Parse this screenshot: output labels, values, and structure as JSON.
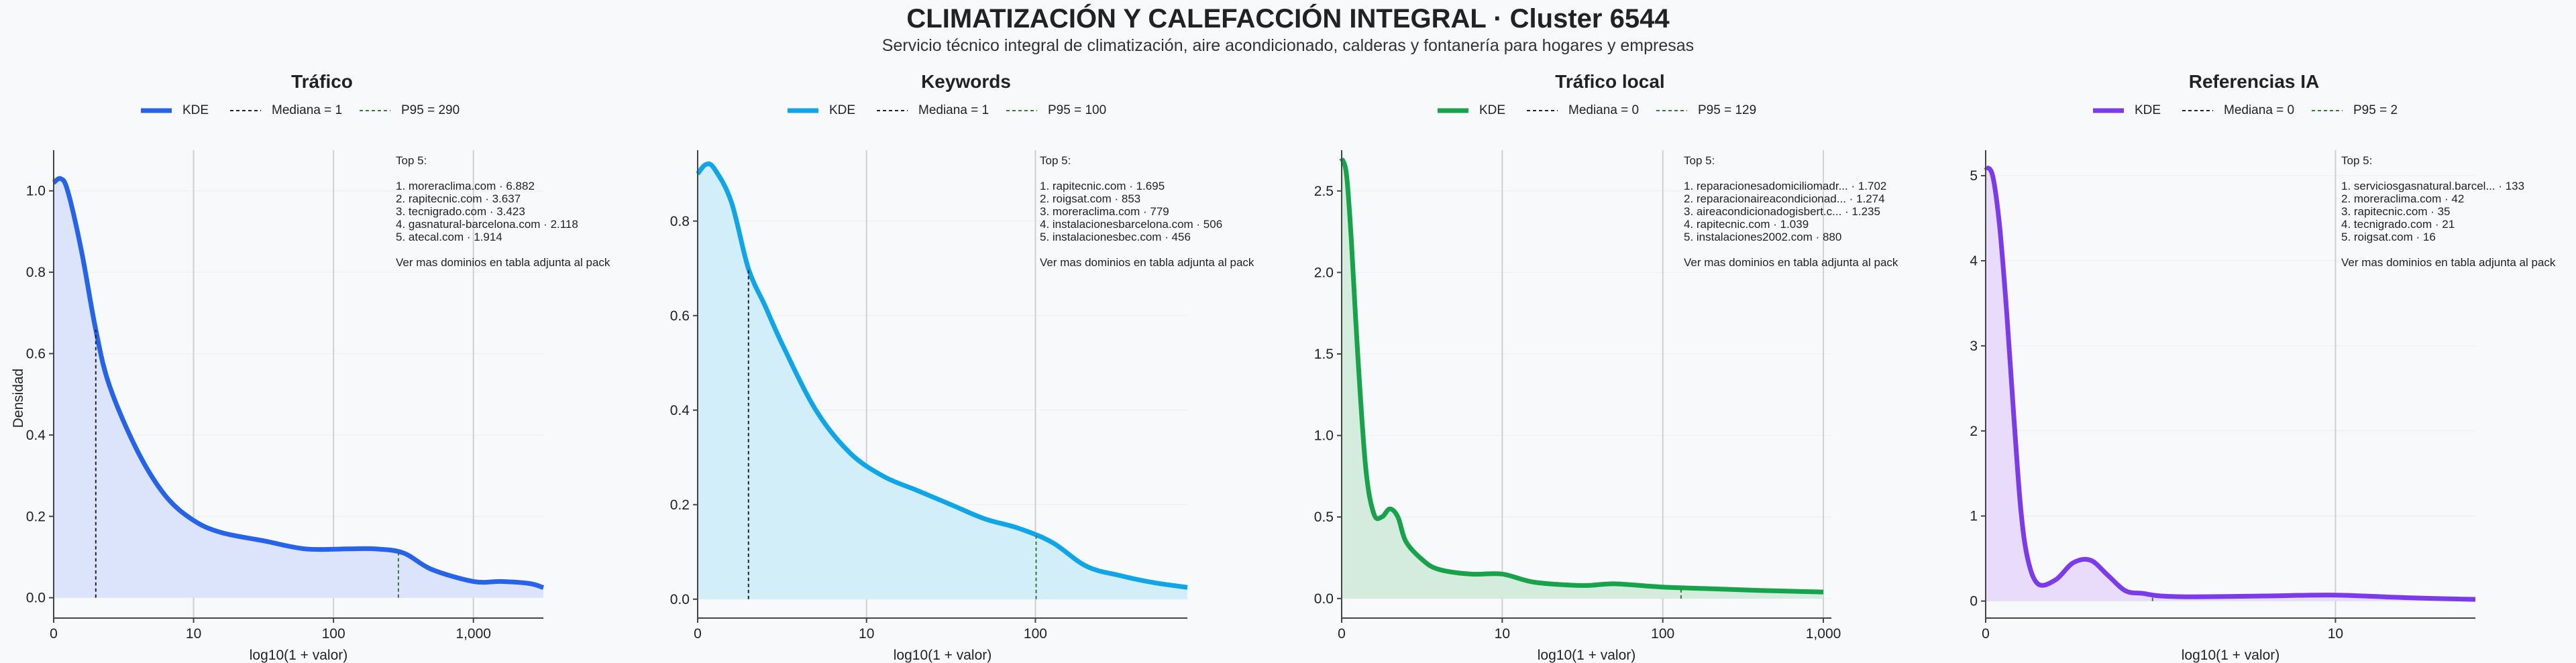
{
  "title": "CLIMATIZACIÓN Y CALEFACCIÓN INTEGRAL · Cluster 6544",
  "subtitle": "Servicio técnico integral de climatización, aire acondicionado, calderas y fontanería para hogares y empresas",
  "colors": {
    "median_line": "#222222",
    "p95_line": "#2e7d32",
    "grid": "#dddddd",
    "axis": "#444444"
  },
  "chart_data": [
    {
      "type": "area",
      "title": "Tráfico",
      "xlabel": "log10(1 + valor)",
      "ylabel": "Densidad",
      "color": "#2563eb",
      "fill": "#dbe4fb",
      "legend": [
        "KDE",
        "Mediana = 1",
        "P95 = 290"
      ],
      "median": 1,
      "p95": 290,
      "xlim": [
        0,
        3.5
      ],
      "ylim": [
        -0.05,
        1.1
      ],
      "xticks": [
        0,
        1,
        2,
        3
      ],
      "xtick_labels": [
        "0",
        "10",
        "100",
        "1,000"
      ],
      "yticks": [
        0,
        0.2,
        0.4,
        0.6,
        0.8,
        1.0
      ],
      "ytick_labels": [
        "0.0",
        "0.2",
        "0.4",
        "0.6",
        "0.8",
        "1.0"
      ],
      "x": [
        0,
        0.05,
        0.1,
        0.2,
        0.3,
        0.4,
        0.6,
        0.8,
        1.0,
        1.2,
        1.5,
        1.8,
        2.1,
        2.3,
        2.5,
        2.7,
        3.0,
        3.2,
        3.4,
        3.5
      ],
      "y": [
        1.02,
        1.03,
        1.0,
        0.85,
        0.66,
        0.52,
        0.36,
        0.25,
        0.19,
        0.16,
        0.14,
        0.12,
        0.12,
        0.12,
        0.11,
        0.07,
        0.04,
        0.04,
        0.035,
        0.025
      ],
      "annotation": [
        "Top 5:",
        "",
        "1. moreraclima.com · 6.882",
        "2. rapitecnic.com · 3.637",
        "3. tecnigrado.com · 3.423",
        "4. gasnatural-barcelona.com · 2.118",
        "5. atecal.com · 1.914",
        "",
        "Ver mas dominios en tabla adjunta al pack"
      ]
    },
    {
      "type": "area",
      "title": "Keywords",
      "xlabel": "log10(1 + valor)",
      "ylabel": "",
      "color": "#0ea5e9",
      "fill": "#d2eef9",
      "legend": [
        "KDE",
        "Mediana = 1",
        "P95 = 100"
      ],
      "median": 1,
      "p95": 100,
      "xlim": [
        0,
        2.9
      ],
      "ylim": [
        -0.04,
        0.95
      ],
      "xticks": [
        0,
        1,
        2
      ],
      "xtick_labels": [
        "0",
        "10",
        "100"
      ],
      "yticks": [
        0,
        0.2,
        0.4,
        0.6,
        0.8
      ],
      "ytick_labels": [
        "0.0",
        "0.2",
        "0.4",
        "0.6",
        "0.8"
      ],
      "x": [
        0,
        0.05,
        0.1,
        0.2,
        0.3,
        0.4,
        0.5,
        0.7,
        0.9,
        1.1,
        1.3,
        1.5,
        1.7,
        1.9,
        2.1,
        2.3,
        2.5,
        2.7,
        2.9
      ],
      "y": [
        0.9,
        0.92,
        0.91,
        0.84,
        0.7,
        0.62,
        0.54,
        0.4,
        0.31,
        0.26,
        0.23,
        0.2,
        0.17,
        0.15,
        0.12,
        0.07,
        0.05,
        0.035,
        0.025
      ],
      "annotation": [
        "Top 5:",
        "",
        "1. rapitecnic.com · 1.695",
        "2. roigsat.com · 853",
        "3. moreraclima.com · 779",
        "4. instalacionesbarcelona.com · 506",
        "5. instalacionesbec.com · 456",
        "",
        "Ver mas dominios en tabla adjunta al pack"
      ]
    },
    {
      "type": "area",
      "title": "Tráfico local",
      "xlabel": "log10(1 + valor)",
      "ylabel": "",
      "color": "#16a34a",
      "fill": "#d3ecdd",
      "legend": [
        "KDE",
        "Mediana = 0",
        "P95 = 129"
      ],
      "median": 0,
      "p95": 129,
      "xlim": [
        0,
        3.05
      ],
      "ylim": [
        -0.12,
        2.75
      ],
      "xticks": [
        0,
        1,
        2,
        3
      ],
      "xtick_labels": [
        "0",
        "10",
        "100",
        "1,000"
      ],
      "yticks": [
        0,
        0.5,
        1.0,
        1.5,
        2.0,
        2.5
      ],
      "ytick_labels": [
        "0.0",
        "0.5",
        "1.0",
        "1.5",
        "2.0",
        "2.5"
      ],
      "x": [
        0,
        0.03,
        0.06,
        0.1,
        0.15,
        0.2,
        0.25,
        0.3,
        0.35,
        0.4,
        0.5,
        0.6,
        0.8,
        1.0,
        1.2,
        1.5,
        1.7,
        2.0,
        2.3,
        2.6,
        3.0
      ],
      "y": [
        2.7,
        2.6,
        2.2,
        1.5,
        0.8,
        0.52,
        0.5,
        0.55,
        0.5,
        0.35,
        0.24,
        0.18,
        0.15,
        0.15,
        0.1,
        0.08,
        0.09,
        0.07,
        0.06,
        0.05,
        0.04
      ],
      "annotation": [
        "Top 5:",
        "",
        "1. reparacionesadomiciliomadr... · 1.702",
        "2. reparacionaireacondicionad... · 1.274",
        "3. aireacondicionadogisbert.c... · 1.235",
        "4. rapitecnic.com · 1.039",
        "5. instalaciones2002.com · 880",
        "",
        "Ver mas dominios en tabla adjunta al pack"
      ]
    },
    {
      "type": "area",
      "title": "Referencias IA",
      "xlabel": "log10(1 + valor)",
      "ylabel": "",
      "color": "#7c3aed",
      "fill": "#e8dcfa",
      "legend": [
        "KDE",
        "Mediana = 0",
        "P95 = 2"
      ],
      "median": 0,
      "p95": 2,
      "xlim": [
        0,
        1.4
      ],
      "ylim": [
        -0.2,
        5.3
      ],
      "xticks": [
        0,
        1
      ],
      "xtick_labels": [
        "0",
        "10"
      ],
      "yticks": [
        0,
        1,
        2,
        3,
        4,
        5
      ],
      "ytick_labels": [
        "0",
        "1",
        "2",
        "3",
        "4",
        "5"
      ],
      "x": [
        0,
        0.02,
        0.04,
        0.06,
        0.08,
        0.1,
        0.12,
        0.15,
        0.2,
        0.25,
        0.3,
        0.35,
        0.4,
        0.45,
        0.5,
        0.6,
        0.8,
        1.0,
        1.2,
        1.4
      ],
      "y": [
        5.1,
        5.0,
        4.4,
        3.4,
        2.2,
        1.1,
        0.5,
        0.2,
        0.25,
        0.45,
        0.48,
        0.3,
        0.12,
        0.09,
        0.06,
        0.05,
        0.06,
        0.07,
        0.04,
        0.02
      ],
      "annotation": [
        "Top 5:",
        "",
        "1. serviciosgasnatural.barcel... · 133",
        "2. moreraclima.com · 42",
        "3. rapitecnic.com · 35",
        "4. tecnigrado.com · 21",
        "5. roigsat.com · 16",
        "",
        "Ver mas dominios en tabla adjunta al pack"
      ]
    }
  ]
}
